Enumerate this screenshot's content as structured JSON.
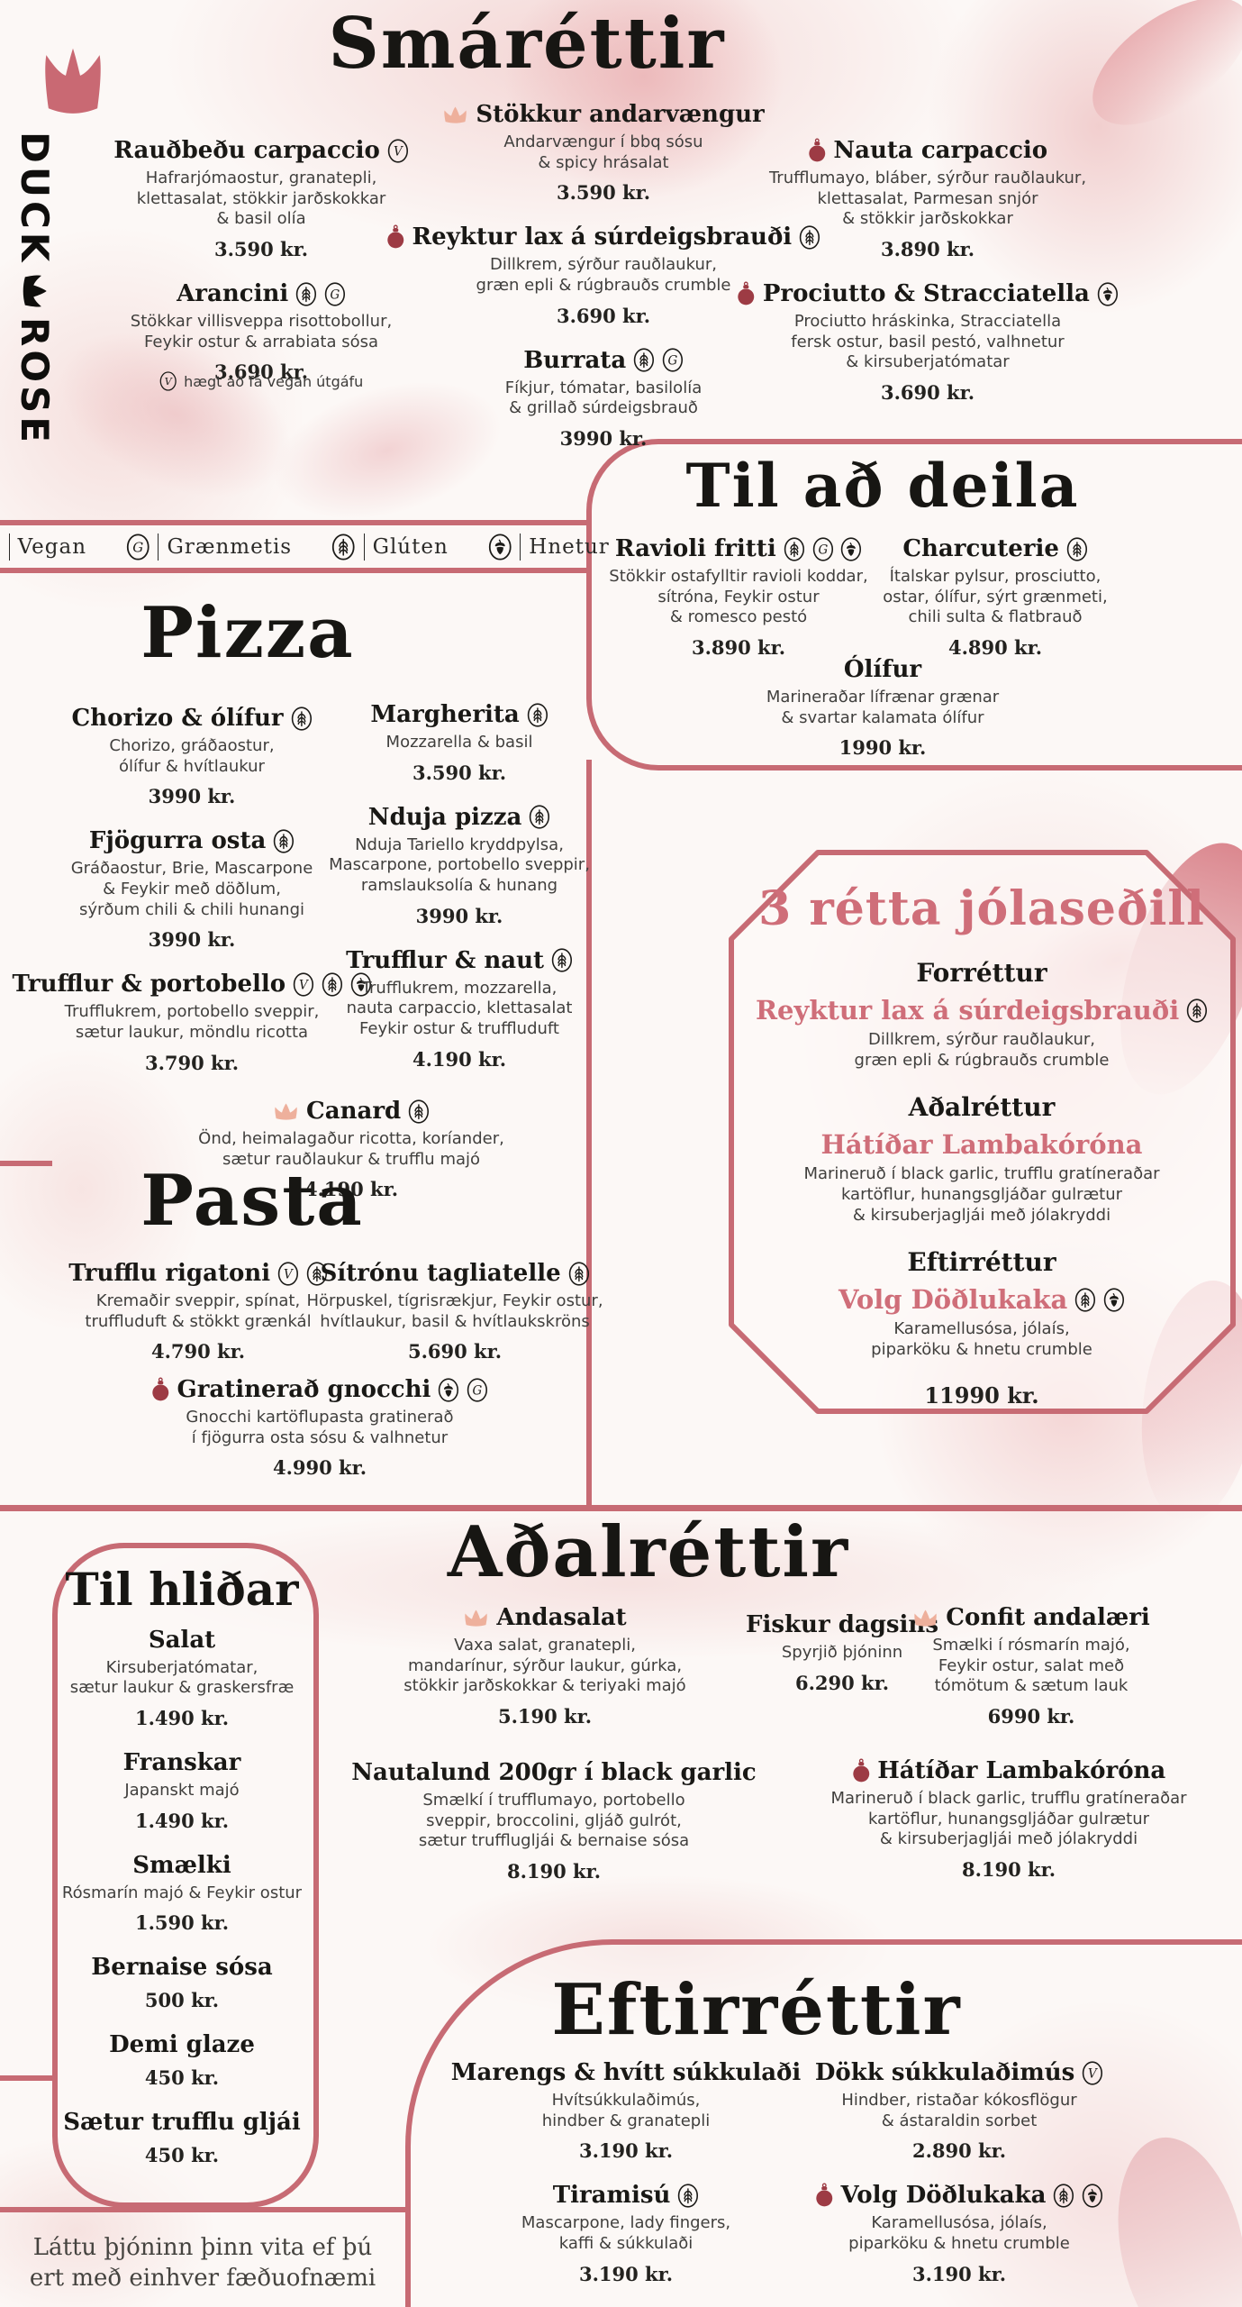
{
  "brand": {
    "word1": "DUCK",
    "word2": "ROSE"
  },
  "colors": {
    "rose_border": "#c76b74",
    "pink_accent": "#cf6e79",
    "ornament_red": "#9d3b44",
    "crown_pink": "#eeb09c",
    "ink": "#1c1b18",
    "body_text": "#403f3d",
    "background": "#fcf8f6"
  },
  "legend": {
    "items": [
      {
        "icon": "vegan",
        "label": "Vegan"
      },
      {
        "icon": "veg",
        "label": "Grænmetis"
      },
      {
        "icon": "gluten",
        "label": "Glúten"
      },
      {
        "icon": "nut",
        "label": "Hnetur"
      }
    ]
  },
  "sections": {
    "smarettir": {
      "title": "Smáréttir",
      "left": [
        {
          "name": "Rauðbeðu carpaccio",
          "icons": [
            "vegan"
          ],
          "desc": "Hafrarjómaostur, granatepli,\nklettasalat, stökkir jarðskokkar\n& basil olía",
          "price": "3.590 kr."
        },
        {
          "name": "Arancini",
          "icons": [
            "gluten",
            "veg"
          ],
          "desc": "Stökkar villisveppa risottobollur,\nFeykir ostur & arrabiata sósa",
          "price": "3.690 kr."
        }
      ],
      "mid": [
        {
          "name": "Stökkur andarvængur",
          "pre": [
            "crown"
          ],
          "desc": "Andarvængur í bbq sósu\n& spicy hrásalat",
          "price": "3.590 kr."
        },
        {
          "name": "Reyktur lax á súrdeigsbrauði",
          "pre": [
            "ornament"
          ],
          "icons": [
            "gluten"
          ],
          "desc": "Dillkrem, sýrður rauðlaukur,\ngræn epli & rúgbrauðs crumble",
          "price": "3.690 kr."
        },
        {
          "name": "Burrata",
          "icons": [
            "gluten",
            "veg"
          ],
          "desc": "Fíkjur, tómatar, basilolía\n& grillað súrdeigsbrauð",
          "price": "3990 kr."
        }
      ],
      "right": [
        {
          "name": "Nauta carpaccio",
          "pre": [
            "ornament"
          ],
          "desc": "Trufflumayo, bláber, sýrður rauðlaukur,\nklettasalat, Parmesan snjór\n& stökkir jarðskokkar",
          "price": "3.890 kr."
        },
        {
          "name": "Prociutto & Stracciatella",
          "pre": [
            "ornament"
          ],
          "icons": [
            "nut"
          ],
          "desc": "Prociutto hráskinka, Stracciatella\nfersk ostur, basil pestó, valhnetur\n& kirsuberjatómatar",
          "price": "3.690 kr."
        }
      ],
      "note": {
        "icon": "vegan",
        "text": "hægt að fá vegan útgáfu"
      }
    },
    "tildeila": {
      "title": "Til að deila",
      "left": [
        {
          "name": "Ravioli fritti",
          "icons": [
            "gluten",
            "veg",
            "nut"
          ],
          "desc": "Stökkir ostafylltir ravioli koddar,\nsítróna, Feykir ostur\n& romesco pestó",
          "price": "3.890 kr."
        }
      ],
      "right": [
        {
          "name": "Charcuterie",
          "icons": [
            "gluten"
          ],
          "desc": "Ítalskar pylsur, prosciutto,\nostar, ólífur, sýrt grænmeti,\nchili sulta & flatbrauð",
          "price": "4.890 kr."
        }
      ],
      "center": [
        {
          "name": "Ólífur",
          "desc": "Marineraðar lífrænar grænar\n& svartar kalamata ólífur",
          "price": "1990 kr."
        }
      ]
    },
    "pizza": {
      "title": "Pizza",
      "left": [
        {
          "name": "Chorizo & ólífur",
          "icons": [
            "gluten"
          ],
          "desc": "Chorizo, gráðaostur,\nólífur & hvítlaukur",
          "price": "3990 kr."
        },
        {
          "name": "Fjögurra osta",
          "icons": [
            "gluten"
          ],
          "desc": "Gráðaostur, Brie, Mascarpone\n& Feykir með döðlum,\nsýrðum chili & chili hunangi",
          "price": "3990 kr."
        },
        {
          "name": "Trufflur & portobello",
          "icons": [
            "vegan",
            "gluten",
            "nut"
          ],
          "desc": "Trufflukrem, portobello sveppir,\nsætur laukur, möndlu ricotta",
          "price": "3.790 kr."
        }
      ],
      "right": [
        {
          "name": "Margherita",
          "icons": [
            "gluten"
          ],
          "desc": "Mozzarella & basil",
          "price": "3.590 kr."
        },
        {
          "name": "Nduja pizza",
          "icons": [
            "gluten"
          ],
          "desc": "Nduja Tariello kryddpylsa,\nMascarpone, portobello sveppir,\nramslauksolía & hunang",
          "price": "3990 kr."
        },
        {
          "name": "Trufflur & naut",
          "icons": [
            "gluten"
          ],
          "desc": "Trufflukrem, mozzarella,\nnauta carpaccio, klettasalat\nFeykir ostur & truffluduft",
          "price": "4.190 kr."
        }
      ],
      "featured": [
        {
          "name": "Canard",
          "pre": [
            "crown"
          ],
          "icons": [
            "gluten"
          ],
          "desc": "Önd, heimalagaður ricotta, koríander,\nsætur rauðlaukur & trufflu majó",
          "price": "4.190 kr."
        }
      ]
    },
    "pasta": {
      "title": "Pasta",
      "left": [
        {
          "name": "Trufflu rigatoni",
          "icons": [
            "vegan",
            "gluten"
          ],
          "desc": "Kremaðir sveppir, spínat,\ntruffluduft & stökkt grænkál",
          "price": "4.790 kr."
        }
      ],
      "right": [
        {
          "name": "Sítrónu tagliatelle",
          "icons": [
            "gluten"
          ],
          "desc": "Hörpuskel, tígrisrækjur, Feykir ostur,\nhvítlaukur, basil & hvítlaukskröns",
          "price": "5.690 kr."
        }
      ],
      "featured": [
        {
          "name": "Gratinerað gnocchi",
          "pre": [
            "ornament"
          ],
          "icons": [
            "nut",
            "veg"
          ],
          "desc": "Gnocchi kartöflupasta gratinerað\ní fjögurra osta sósu & valhnetur",
          "price": "4.990 kr."
        }
      ]
    },
    "jolasedill": {
      "title": "3 rétta jólaseðill",
      "courses": [
        {
          "course": "Forréttur",
          "name": "Reyktur lax á súrdeigsbrauði",
          "icons": [
            "gluten"
          ],
          "desc": "Dillkrem, sýrður rauðlaukur,\ngræn epli & rúgbrauðs crumble"
        },
        {
          "course": "Aðalréttur",
          "name": "Hátíðar Lambakóróna",
          "desc": "Marineruð í black garlic, trufflu gratíneraðar\nkartöflur, hunangsgljáðar gulrætur\n& kirsuberjagljái með jólakryddi"
        },
        {
          "course": "Eftirréttur",
          "name": "Volg Döðlukaka",
          "icons": [
            "gluten",
            "nut"
          ],
          "desc": "Karamellusósa, jólaís,\npiparköku & hnetu crumble"
        }
      ],
      "price": "11990 kr."
    },
    "tilhlidar": {
      "title": "Til hliðar",
      "items": [
        {
          "name": "Salat",
          "desc": "Kirsuberjatómatar,\nsætur laukur & graskersfræ",
          "price": "1.490 kr."
        },
        {
          "name": "Franskar",
          "desc": "Japanskt majó",
          "price": "1.490 kr."
        },
        {
          "name": "Smælki",
          "desc": "Rósmarín majó & Feykir ostur",
          "price": "1.590 kr."
        },
        {
          "name": "Bernaise sósa",
          "price": "500 kr."
        },
        {
          "name": "Demi glaze",
          "price": "450 kr."
        },
        {
          "name": "Sætur trufflu gljái",
          "price": "450 kr."
        }
      ]
    },
    "adalrettir": {
      "title": "Aðalréttir",
      "items": [
        {
          "name": "Andasalat",
          "pre": [
            "crown"
          ],
          "desc": "Vaxa salat, granatepli,\nmandarínur, sýrður laukur, gúrka,\nstökkir jarðskokkar & teriyaki majó",
          "price": "5.190 kr."
        },
        {
          "name": "Fiskur dagsins",
          "desc": "Spyrjið þjóninn",
          "price": "6.290 kr."
        },
        {
          "name": "Confit andalæri",
          "pre": [
            "crown"
          ],
          "desc": "Smælki í rósmarín majó,\nFeykir ostur, salat með\ntómötum & sætum lauk",
          "price": "6990 kr."
        },
        {
          "name": "Nautalund 200gr í black garlic",
          "desc": "Smælkí í trufflumayo, portobello\nsveppir, broccolini, gljáð gulrót,\nsætur trufflugljái & bernaise sósa",
          "price": "8.190 kr."
        },
        {
          "name": "Hátíðar Lambakóróna",
          "pre": [
            "ornament"
          ],
          "desc": "Marineruð í black garlic, trufflu gratíneraðar\nkartöflur, hunangsgljáðar gulrætur\n& kirsuberjagljái með jólakryddi",
          "price": "8.190 kr."
        }
      ]
    },
    "eftirrettir": {
      "title": "Eftirréttir",
      "left": [
        {
          "name": "Marengs & hvítt súkkulaði",
          "desc": "Hvítsúkkulaðimús,\nhindber & granatepli",
          "price": "3.190 kr."
        },
        {
          "name": "Tiramisú",
          "icons": [
            "gluten"
          ],
          "desc": "Mascarpone, lady fingers,\nkaffi & súkkulaði",
          "price": "3.190 kr."
        }
      ],
      "right": [
        {
          "name": "Dökk súkkulaðimús",
          "icons": [
            "vegan"
          ],
          "desc": "Hindber, ristaðar kókosflögur\n& ástaraldin sorbet",
          "price": "2.890 kr."
        },
        {
          "name": "Volg Döðlukaka",
          "pre": [
            "ornament"
          ],
          "icons": [
            "gluten",
            "nut"
          ],
          "desc": "Karamellusósa, jólaís,\npiparköku & hnetu crumble",
          "price": "3.190 kr."
        }
      ]
    }
  },
  "footer": {
    "note": "Láttu þjóninn þinn vita ef þú\nert með einhver fæðuofnæmi"
  }
}
